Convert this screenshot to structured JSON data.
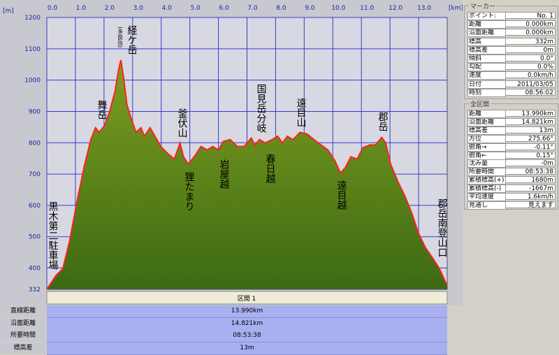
{
  "chart_data": {
    "type": "area",
    "x_unit_label": "[km]",
    "y_unit_label": "[m]",
    "xlim": [
      0,
      14
    ],
    "ylim": [
      332,
      1200
    ],
    "xticks": [
      {
        "value": 0,
        "label": "0.0"
      },
      {
        "value": 1,
        "label": "1.0"
      },
      {
        "value": 2,
        "label": "2.0"
      },
      {
        "value": 3,
        "label": "3.0"
      },
      {
        "value": 4,
        "label": "4.0"
      },
      {
        "value": 5,
        "label": "5.0"
      },
      {
        "value": 6,
        "label": "6.0"
      },
      {
        "value": 7,
        "label": "7.0"
      },
      {
        "value": 8,
        "label": "8.0"
      },
      {
        "value": 9,
        "label": "9.0"
      },
      {
        "value": 10,
        "label": "10.0"
      },
      {
        "value": 11,
        "label": "11.0"
      },
      {
        "value": 12,
        "label": "12.0"
      },
      {
        "value": 13,
        "label": "13.0"
      }
    ],
    "yticks": [
      332,
      400,
      500,
      600,
      700,
      800,
      900,
      1000,
      1100,
      1200
    ],
    "grid": true,
    "line_color": "#ff2020",
    "fill_top": "#7e9e22",
    "fill_bottom": "#3c6a12",
    "x": [
      0,
      0.32,
      0.56,
      0.8,
      1.05,
      1.3,
      1.54,
      1.7,
      1.83,
      2.02,
      2.2,
      2.39,
      2.51,
      2.59,
      2.68,
      2.8,
      2.95,
      3.12,
      3.29,
      3.41,
      3.61,
      3.78,
      3.98,
      4.22,
      4.46,
      4.66,
      4.78,
      4.95,
      5.2,
      5.39,
      5.61,
      5.8,
      6.0,
      6.17,
      6.41,
      6.66,
      6.9,
      7.15,
      7.27,
      7.44,
      7.63,
      7.88,
      8.07,
      8.24,
      8.41,
      8.61,
      8.85,
      9.1,
      9.34,
      9.59,
      9.83,
      10.07,
      10.27,
      10.44,
      10.63,
      10.85,
      11.05,
      11.29,
      11.49,
      11.71,
      11.85,
      12.02,
      12.27,
      12.51,
      12.76,
      13.0,
      13.24,
      13.49,
      13.73,
      13.99
    ],
    "values": [
      332,
      376,
      398,
      487,
      610,
      721,
      810,
      848,
      833,
      855,
      900,
      966,
      1033,
      1064,
      1011,
      922,
      877,
      833,
      848,
      821,
      848,
      821,
      788,
      766,
      748,
      799,
      755,
      732,
      761,
      788,
      777,
      788,
      777,
      804,
      810,
      788,
      788,
      815,
      793,
      810,
      799,
      810,
      821,
      799,
      821,
      810,
      833,
      828,
      810,
      793,
      777,
      743,
      703,
      721,
      755,
      748,
      784,
      793,
      793,
      817,
      799,
      732,
      677,
      632,
      576,
      510,
      465,
      432,
      398,
      345
    ],
    "annotations": [
      "黒木第二駐車場",
      "舞岳",
      "(多良岳)",
      "経ケ岳",
      "釜伏山",
      "狸たまり",
      "岩屋越",
      "国見岳分岐",
      "春日越",
      "遠目山",
      "遠目越",
      "郡岳",
      "郡岳南登山口"
    ],
    "section_label": "区間 1"
  },
  "summary": [
    [
      "直線距離",
      "13.990km"
    ],
    [
      "沿面距離",
      "14.821km"
    ],
    [
      "所要時間",
      "08:53:38"
    ],
    [
      "標高差",
      "13m"
    ]
  ],
  "marker_panel": {
    "title": "マーカー",
    "rows": [
      [
        "ポイント:",
        "No. 1"
      ],
      [
        "距離",
        "0.000km"
      ],
      [
        "沿面距離",
        "0.000km"
      ],
      [
        "標高",
        "332m"
      ],
      [
        "標高差",
        "0m"
      ],
      [
        "傾斜",
        "0.0°"
      ],
      [
        "勾配",
        "0.0%"
      ],
      [
        "速度",
        "0.0km/h"
      ],
      [
        "日付",
        "2011/03/05"
      ],
      [
        "時刻",
        "08:56:02"
      ]
    ]
  },
  "section_panel": {
    "title": "全区間",
    "rows": [
      [
        "距離",
        "13.990km"
      ],
      [
        "沿面距離",
        "14.821km"
      ],
      [
        "標高差",
        "13m"
      ],
      [
        "方位",
        "275.66°"
      ],
      [
        "俯角→",
        "-0.11°"
      ],
      [
        "俯角←",
        "0.15°"
      ],
      [
        "沈み量",
        "-0m"
      ],
      [
        "所要時間",
        "08:53:38"
      ],
      [
        "累積標高(+)",
        "1680m"
      ],
      [
        "累積標高(-)",
        "-1667m"
      ],
      [
        "平均速度",
        "1.6km/h"
      ],
      [
        "見通し",
        "見えます"
      ]
    ]
  }
}
